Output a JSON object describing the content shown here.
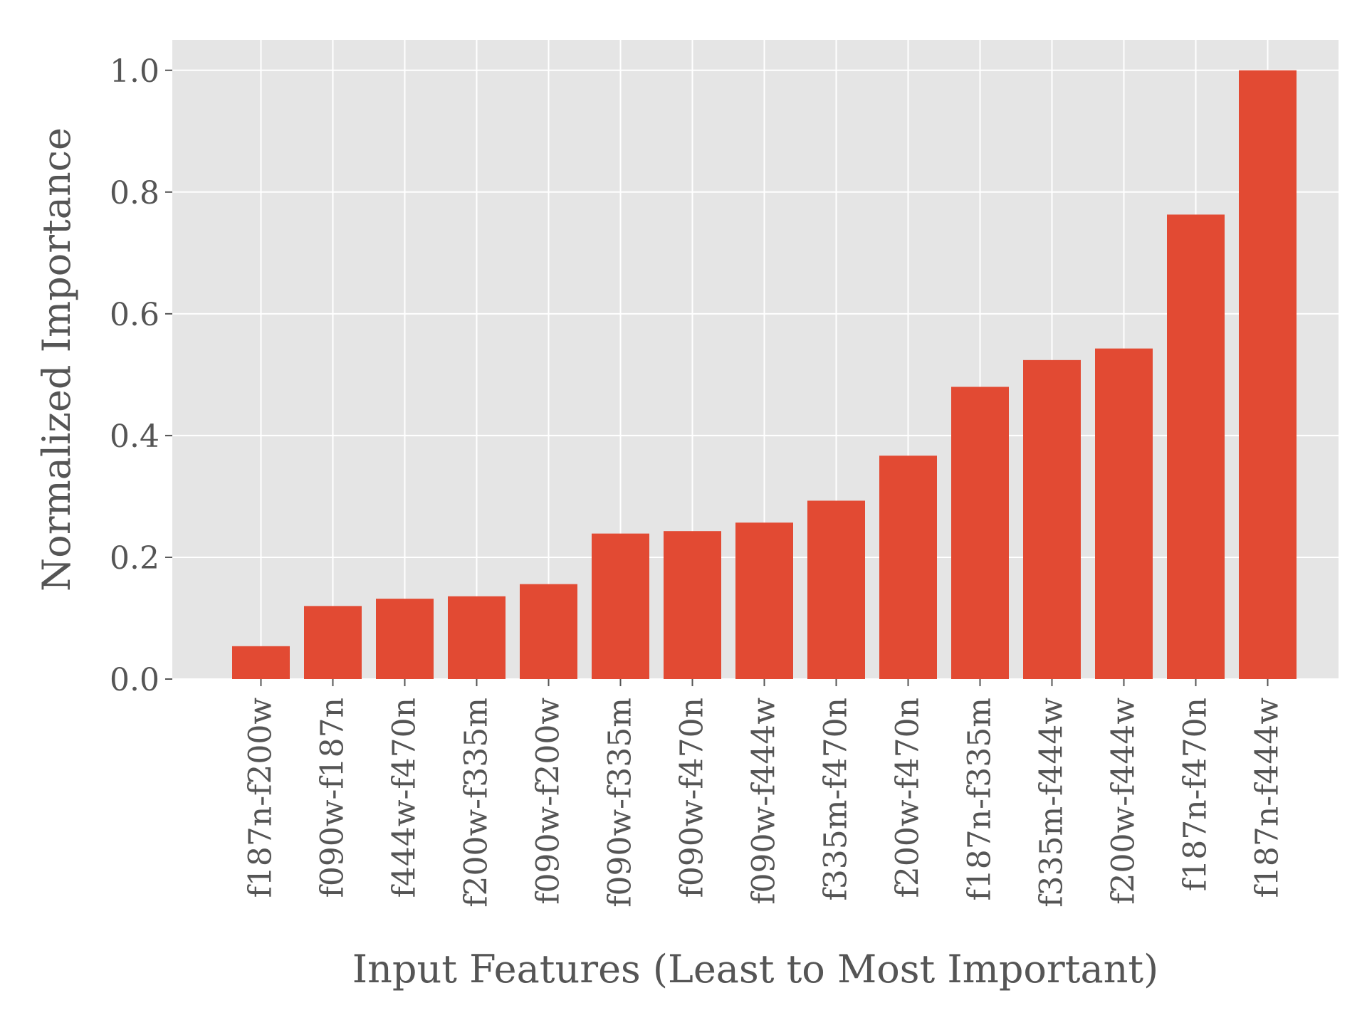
{
  "chart_data": {
    "type": "bar",
    "xlabel": "Input Features (Least to Most Important)",
    "ylabel": "Normalized Importance",
    "ylim": [
      0,
      1.05
    ],
    "yticks": [
      "0.0",
      "0.2",
      "0.4",
      "0.6",
      "0.8",
      "1.0"
    ],
    "grid": true,
    "bar_color": "#E24A33",
    "background_color": "#E5E5E5",
    "categories": [
      "f187n-f200w",
      "f090w-f187n",
      "f444w-f470n",
      "f200w-f335m",
      "f090w-f200w",
      "f090w-f335m",
      "f090w-f470n",
      "f090w-f444w",
      "f335m-f470n",
      "f200w-f470n",
      "f187n-f335m",
      "f335m-f444w",
      "f200w-f444w",
      "f187n-f470n",
      "f187n-f444w"
    ],
    "values": [
      0.054,
      0.12,
      0.132,
      0.136,
      0.156,
      0.239,
      0.243,
      0.257,
      0.293,
      0.367,
      0.48,
      0.524,
      0.543,
      0.763,
      1.0
    ]
  }
}
